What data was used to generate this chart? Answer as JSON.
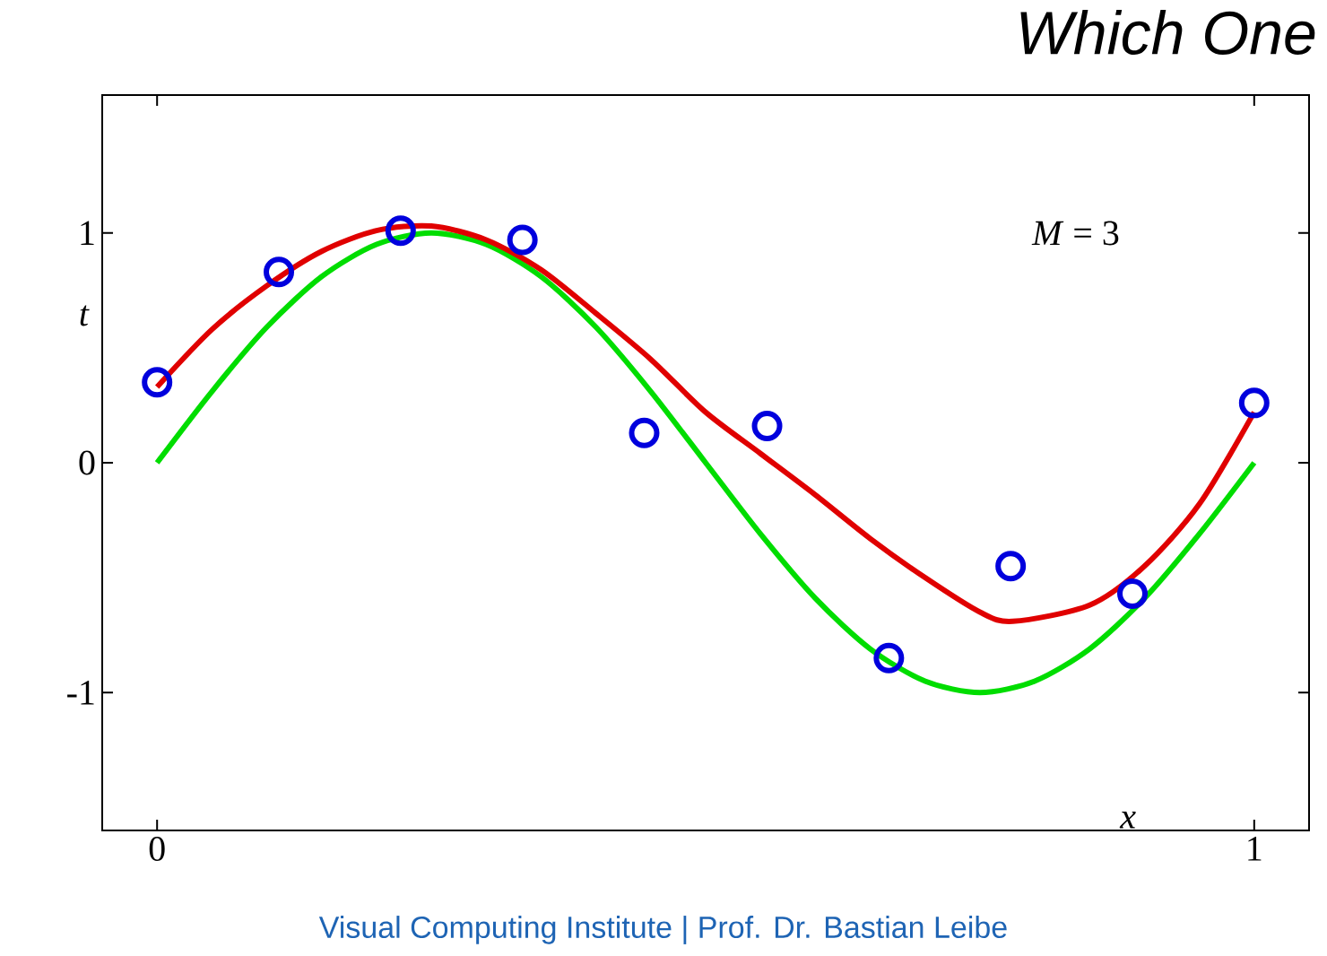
{
  "chart_data": {
    "type": "line",
    "title": "Which One",
    "xlabel": "x",
    "ylabel": "t",
    "xlim": [
      -0.05,
      1.05
    ],
    "ylim": [
      -1.6,
      1.6
    ],
    "xticks": [
      0,
      1
    ],
    "yticks": [
      -1,
      0,
      1
    ],
    "annotations": [
      "*M* = 3",
      "Visual Computing Institute | Prof. Dr. Bastian Leibe"
    ],
    "series": [
      {
        "type": "line",
        "color": "#00dd00",
        "x": [
          0,
          0.05,
          0.1,
          0.15,
          0.2,
          0.25,
          0.3,
          0.35,
          0.4,
          0.45,
          0.5,
          0.55,
          0.6,
          0.65,
          0.7,
          0.75,
          0.8,
          0.85,
          0.9,
          0.95,
          1.0
        ],
        "values": [
          0,
          0.31,
          0.59,
          0.81,
          0.95,
          1.0,
          0.95,
          0.81,
          0.59,
          0.31,
          0,
          -0.31,
          -0.59,
          -0.81,
          -0.95,
          -1.0,
          -0.95,
          -0.81,
          -0.59,
          -0.31,
          0
        ]
      },
      {
        "type": "line",
        "color": "#e00000",
        "x": [
          0,
          0.05,
          0.1,
          0.15,
          0.2,
          0.25,
          0.3,
          0.35,
          0.4,
          0.45,
          0.5,
          0.55,
          0.6,
          0.65,
          0.7,
          0.75,
          0.78,
          0.85,
          0.9,
          0.95,
          1.0
        ],
        "values": [
          0.33,
          0.58,
          0.77,
          0.92,
          1.01,
          1.03,
          0.97,
          0.84,
          0.65,
          0.45,
          0.22,
          0.04,
          -0.14,
          -0.33,
          -0.5,
          -0.65,
          -0.69,
          -0.62,
          -0.45,
          -0.18,
          0.22
        ]
      },
      {
        "type": "scatter",
        "color": "#0000dd",
        "marker": "circle",
        "x": [
          0,
          0.111,
          0.222,
          0.333,
          0.444,
          0.556,
          0.667,
          0.778,
          0.889,
          1.0
        ],
        "values": [
          0.35,
          0.83,
          1.01,
          0.97,
          0.13,
          0.16,
          -0.85,
          -0.45,
          -0.57,
          0.26
        ]
      }
    ]
  }
}
